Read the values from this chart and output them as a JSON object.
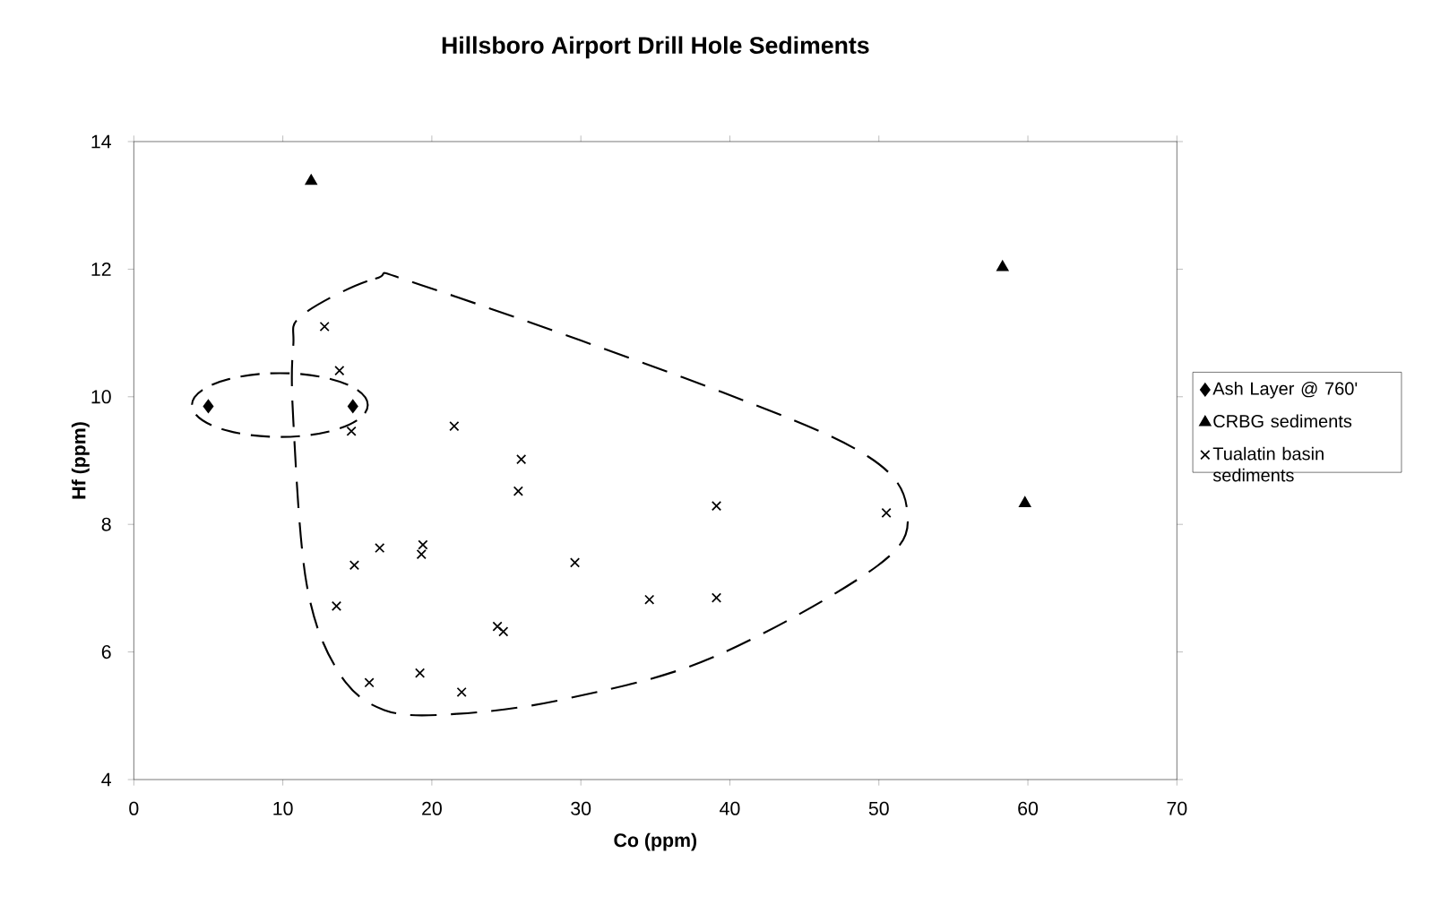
{
  "chart_data": {
    "type": "scatter",
    "title": "Hillsboro Airport Drill Hole Sediments",
    "xlabel": "Co (ppm)",
    "ylabel": "Hf (ppm)",
    "xlim": [
      0,
      70
    ],
    "ylim": [
      4,
      14
    ],
    "xticks": [
      0,
      10,
      20,
      30,
      40,
      50,
      60,
      70
    ],
    "yticks": [
      4,
      6,
      8,
      10,
      12,
      14
    ],
    "legend": "right",
    "series": [
      {
        "name": "Ash Layer @ 760'",
        "color": "#000000",
        "marker": "diamond",
        "x": [
          5.0,
          14.7
        ],
        "values": [
          9.85,
          9.85
        ]
      },
      {
        "name": "CRBG sediments",
        "color": "#000000",
        "marker": "triangle",
        "x": [
          11.9,
          58.3,
          59.8
        ],
        "values": [
          13.38,
          12.03,
          8.33
        ]
      },
      {
        "name": "Tualatin basin sediments",
        "color": "#000000",
        "marker": "cross",
        "x": [
          12.8,
          13.8,
          14.6,
          21.5,
          26.0,
          25.8,
          39.1,
          50.5,
          16.5,
          19.4,
          19.3,
          14.8,
          29.6,
          13.6,
          34.6,
          39.1,
          24.4,
          24.8,
          15.8,
          19.2,
          22.0
        ],
        "values": [
          11.1,
          10.41,
          9.46,
          9.54,
          9.02,
          8.52,
          8.29,
          8.18,
          7.63,
          7.68,
          7.53,
          7.36,
          7.4,
          6.72,
          6.82,
          6.85,
          6.4,
          6.32,
          5.52,
          5.67,
          5.37
        ]
      }
    ]
  }
}
